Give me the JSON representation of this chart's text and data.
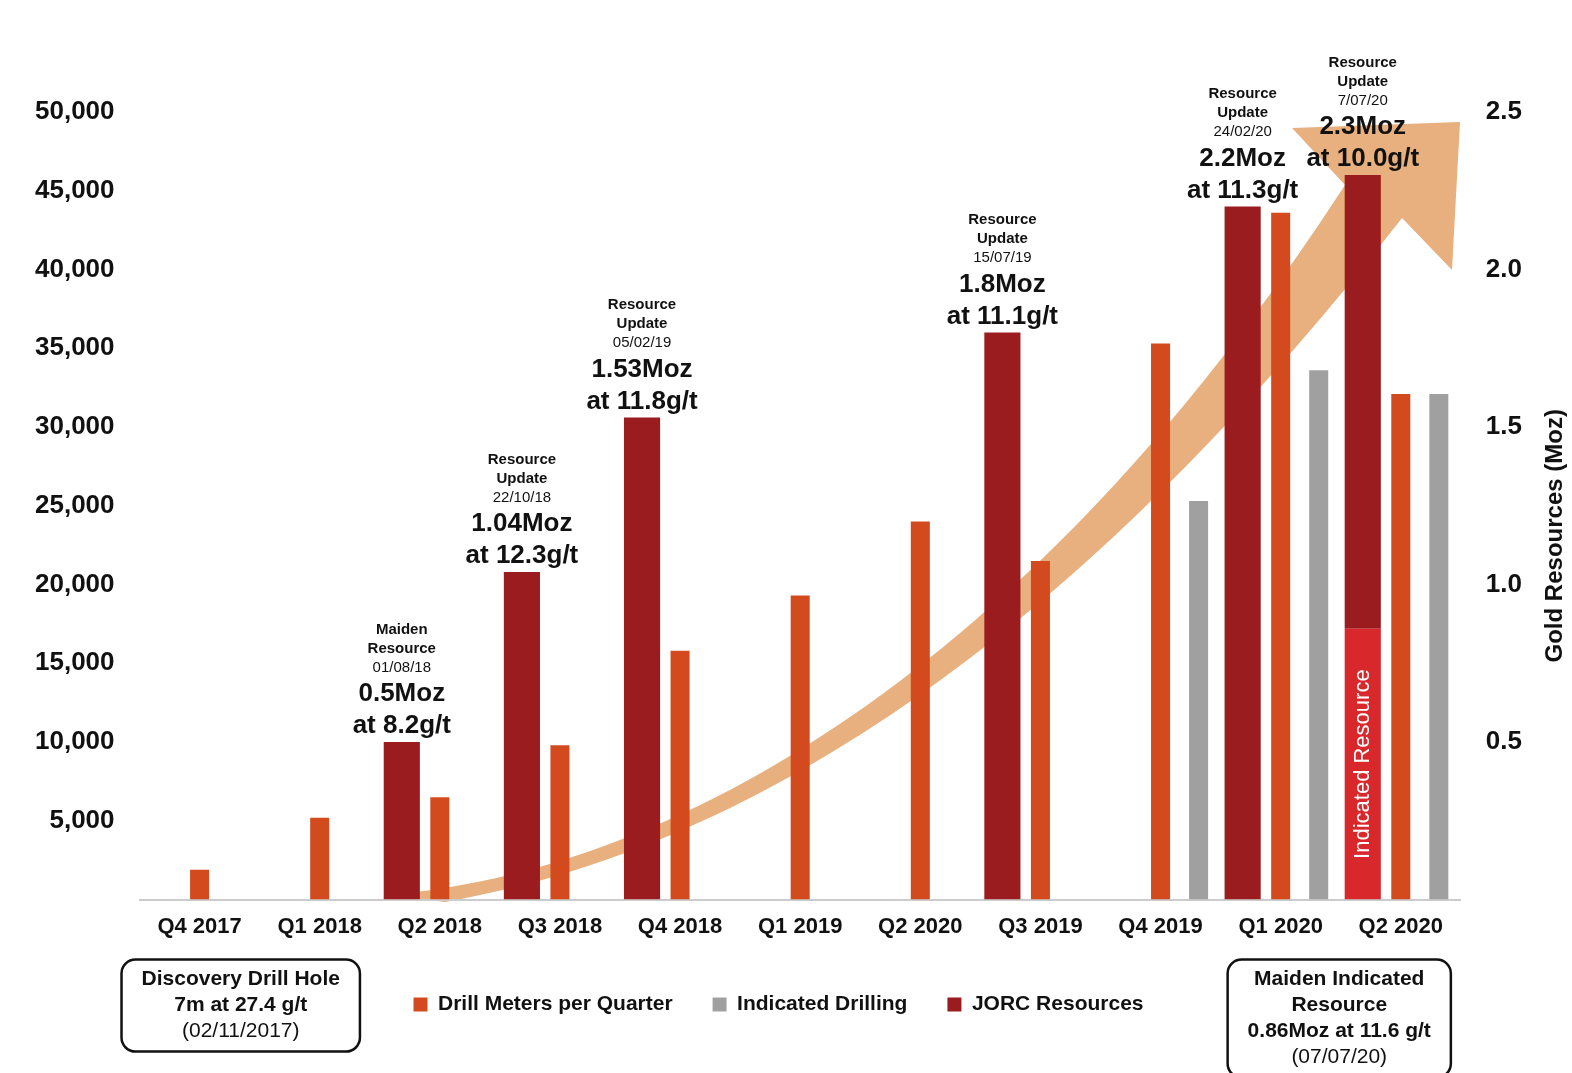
{
  "chart_data": {
    "type": "bar",
    "categories": [
      "Q4 2017",
      "Q1 2018",
      "Q2 2018",
      "Q3 2018",
      "Q4 2018",
      "Q1 2019",
      "Q2 2020",
      "Q3 2019",
      "Q4 2019",
      "Q1 2020",
      "Q2 2020"
    ],
    "series": [
      {
        "name": "Drill Meters per Quarter",
        "color": "#d24a1e",
        "values": [
          1900,
          5200,
          6500,
          9800,
          15800,
          19300,
          24000,
          21500,
          35300,
          43600,
          32100
        ]
      },
      {
        "name": "Indicated Drilling",
        "color": "#a0a0a0",
        "values": [
          null,
          null,
          null,
          null,
          null,
          null,
          null,
          null,
          25300,
          33600,
          32100
        ]
      },
      {
        "name": "Indicated Resource",
        "color": "#d8282c",
        "axis": "y2",
        "values": [
          null,
          null,
          null,
          null,
          null,
          null,
          null,
          null,
          null,
          null,
          0.86
        ]
      },
      {
        "name": "JORC Resources",
        "color": "#9b1c1f",
        "axis": "y2",
        "values": [
          null,
          null,
          0.5,
          1.04,
          1.53,
          null,
          null,
          1.8,
          null,
          2.2,
          1.44
        ],
        "base": [
          null,
          null,
          0,
          0,
          0,
          null,
          null,
          0,
          null,
          0,
          0.86
        ]
      }
    ],
    "ylim": [
      0,
      50000
    ],
    "yticks": [
      {
        "value": 5000,
        "label": "5,000"
      },
      {
        "value": 10000,
        "label": "10,000"
      },
      {
        "value": 15000,
        "label": "15,000"
      },
      {
        "value": 20000,
        "label": "20,000"
      },
      {
        "value": 25000,
        "label": "25,000"
      },
      {
        "value": 30000,
        "label": "30,000"
      },
      {
        "value": 35000,
        "label": "35,000"
      },
      {
        "value": 40000,
        "label": "40,000"
      },
      {
        "value": 45000,
        "label": "45,000"
      },
      {
        "value": 50000,
        "label": "50,000"
      }
    ],
    "y2lim": [
      0,
      2.5
    ],
    "y2ticks": [
      0.5,
      {
        "value": 1,
        "label": "1.0"
      },
      1.5,
      {
        "value": 2,
        "label": "2.0"
      },
      2.5
    ],
    "y2label": "Gold Resources (Moz)",
    "legend": "bottom",
    "grid": false,
    "annotations": [
      "Maiden",
      "Resource",
      "01/08/18",
      "0.5Moz",
      "at 8.2g/t",
      "Resource",
      "Update",
      "22/10/18",
      "1.04Moz",
      "at 12.3g/t",
      "Resource",
      "Update",
      "05/02/19",
      "1.53Moz",
      "at 11.8g/t",
      "Resource",
      "Update",
      "15/07/19",
      "1.8Moz",
      "at 11.1g/t",
      "Resource",
      "Update",
      "24/02/20",
      "2.2Moz",
      "at 11.3g/t",
      "Resource",
      "Update",
      "7/07/20",
      "2.3Moz",
      "at 10.0g/t",
      "Discovery Drill Hole\n7m at 27.4 g/t\n(02/11/2017)",
      "Maiden Indicated\nResource\n0.86Moz at 11.6 g/t\n(07/07/20)"
    ]
  }
}
